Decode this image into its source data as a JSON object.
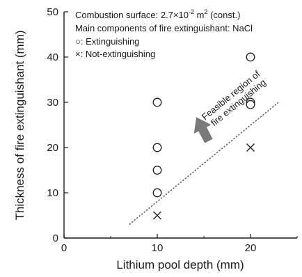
{
  "chart_data": {
    "type": "scatter",
    "xlabel": "Lithium pool depth (mm)",
    "ylabel": "Thickness of fire extinguishant (mm)",
    "xlim": [
      0,
      25
    ],
    "ylim": [
      0,
      50
    ],
    "x_ticks": [
      0,
      10,
      20
    ],
    "x_tick_labels": [
      "0",
      "10",
      "20"
    ],
    "y_ticks": [
      0,
      10,
      20,
      30,
      40,
      50
    ],
    "y_tick_labels": [
      "0",
      "10",
      "20",
      "30",
      "40",
      "50"
    ],
    "grid": false,
    "legend_position": "top-left",
    "legend": {
      "line1_prefix": "Combustion surface: 2.7×10",
      "line1_exp": "-2",
      "line1_mid": " m",
      "line1_sq": "2",
      "line1_suffix": " (const.)",
      "line2": "Main components of fire extinguishant: NaCl",
      "line3": "○: Extinguishing",
      "line4": "×: Not-extinguishing"
    },
    "series": [
      {
        "name": "Extinguishing",
        "marker": "circle",
        "points": [
          [
            10,
            30
          ],
          [
            10,
            20
          ],
          [
            10,
            15
          ],
          [
            10,
            10
          ],
          [
            20,
            40
          ],
          [
            20,
            30
          ],
          [
            20,
            29.5
          ]
        ]
      },
      {
        "name": "Not-extinguishing",
        "marker": "cross",
        "points": [
          [
            10,
            5
          ],
          [
            20,
            20
          ]
        ]
      }
    ],
    "boundary_line": {
      "x1": 7,
      "y1": 3,
      "x2": 23,
      "y2": 30
    },
    "arrow": {
      "from": [
        15.5,
        21.5
      ],
      "to": [
        14.5,
        25.5
      ],
      "color": "#7a7a7a"
    },
    "annotation": {
      "line1": "Feasible region of",
      "line2": "fire extinguishing",
      "anchor": [
        18.2,
        31.2
      ]
    }
  }
}
